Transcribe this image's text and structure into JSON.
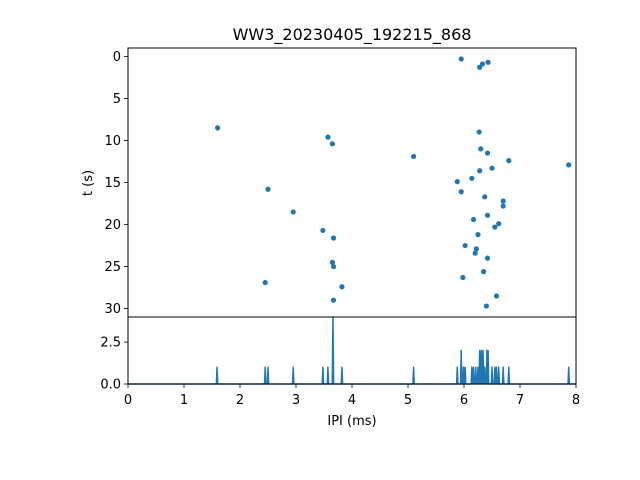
{
  "chart_data": {
    "type": "scatter",
    "title": "WW3_20230405_192215_868",
    "xlabel": "IPI (ms)",
    "ylabel": "t (s)",
    "xlim": [
      0,
      8
    ],
    "ylim_top": [
      31,
      -1
    ],
    "ylim_bottom": [
      0,
      4
    ],
    "x_ticks": [
      "0",
      "1",
      "2",
      "3",
      "4",
      "5",
      "6",
      "7",
      "8"
    ],
    "y_ticks_top": [
      "0",
      "5",
      "10",
      "15",
      "20",
      "25",
      "30"
    ],
    "y_ticks_bottom": [
      "0.0",
      "2.5"
    ],
    "y_tick_values_bottom": [
      0,
      2.5
    ],
    "marker_color": "#1f77b4",
    "points": [
      {
        "x": 5.95,
        "t": 0.3
      },
      {
        "x": 6.43,
        "t": 0.7
      },
      {
        "x": 6.33,
        "t": 0.9
      },
      {
        "x": 6.28,
        "t": 1.3
      },
      {
        "x": 1.6,
        "t": 8.5
      },
      {
        "x": 3.57,
        "t": 9.6
      },
      {
        "x": 3.65,
        "t": 10.4
      },
      {
        "x": 6.27,
        "t": 9.0
      },
      {
        "x": 6.3,
        "t": 11.0
      },
      {
        "x": 6.42,
        "t": 11.5
      },
      {
        "x": 5.1,
        "t": 11.9
      },
      {
        "x": 6.8,
        "t": 12.4
      },
      {
        "x": 7.87,
        "t": 12.9
      },
      {
        "x": 6.5,
        "t": 13.3
      },
      {
        "x": 6.28,
        "t": 13.6
      },
      {
        "x": 6.14,
        "t": 14.5
      },
      {
        "x": 5.88,
        "t": 14.9
      },
      {
        "x": 2.5,
        "t": 15.8
      },
      {
        "x": 5.95,
        "t": 16.1
      },
      {
        "x": 6.37,
        "t": 16.7
      },
      {
        "x": 6.7,
        "t": 17.2
      },
      {
        "x": 6.7,
        "t": 17.8
      },
      {
        "x": 2.95,
        "t": 18.5
      },
      {
        "x": 6.42,
        "t": 18.9
      },
      {
        "x": 6.17,
        "t": 19.4
      },
      {
        "x": 6.62,
        "t": 19.9
      },
      {
        "x": 6.55,
        "t": 20.3
      },
      {
        "x": 3.48,
        "t": 20.7
      },
      {
        "x": 6.25,
        "t": 21.2
      },
      {
        "x": 3.67,
        "t": 21.6
      },
      {
        "x": 6.02,
        "t": 22.5
      },
      {
        "x": 6.22,
        "t": 22.9
      },
      {
        "x": 6.2,
        "t": 23.4
      },
      {
        "x": 6.42,
        "t": 24.0
      },
      {
        "x": 3.65,
        "t": 24.5
      },
      {
        "x": 3.67,
        "t": 25.0
      },
      {
        "x": 6.35,
        "t": 25.6
      },
      {
        "x": 5.98,
        "t": 26.3
      },
      {
        "x": 2.45,
        "t": 26.9
      },
      {
        "x": 3.82,
        "t": 27.4
      },
      {
        "x": 6.58,
        "t": 28.5
      },
      {
        "x": 3.67,
        "t": 29.0
      },
      {
        "x": 6.4,
        "t": 29.7
      }
    ],
    "histogram": [
      {
        "x": 1.59,
        "count": 1
      },
      {
        "x": 2.45,
        "count": 1
      },
      {
        "x": 2.5,
        "count": 1
      },
      {
        "x": 2.95,
        "count": 1
      },
      {
        "x": 3.48,
        "count": 1
      },
      {
        "x": 3.57,
        "count": 1
      },
      {
        "x": 3.66,
        "count": 4
      },
      {
        "x": 3.82,
        "count": 1
      },
      {
        "x": 5.1,
        "count": 1
      },
      {
        "x": 5.88,
        "count": 1
      },
      {
        "x": 5.95,
        "count": 2
      },
      {
        "x": 5.99,
        "count": 1
      },
      {
        "x": 6.02,
        "count": 1
      },
      {
        "x": 6.14,
        "count": 1
      },
      {
        "x": 6.17,
        "count": 1
      },
      {
        "x": 6.21,
        "count": 1
      },
      {
        "x": 6.25,
        "count": 1
      },
      {
        "x": 6.28,
        "count": 2
      },
      {
        "x": 6.31,
        "count": 2
      },
      {
        "x": 6.34,
        "count": 2
      },
      {
        "x": 6.37,
        "count": 1
      },
      {
        "x": 6.41,
        "count": 2
      },
      {
        "x": 6.43,
        "count": 2
      },
      {
        "x": 6.5,
        "count": 1
      },
      {
        "x": 6.55,
        "count": 1
      },
      {
        "x": 6.58,
        "count": 1
      },
      {
        "x": 6.62,
        "count": 1
      },
      {
        "x": 6.7,
        "count": 1
      },
      {
        "x": 6.8,
        "count": 1
      },
      {
        "x": 7.87,
        "count": 1
      }
    ]
  }
}
